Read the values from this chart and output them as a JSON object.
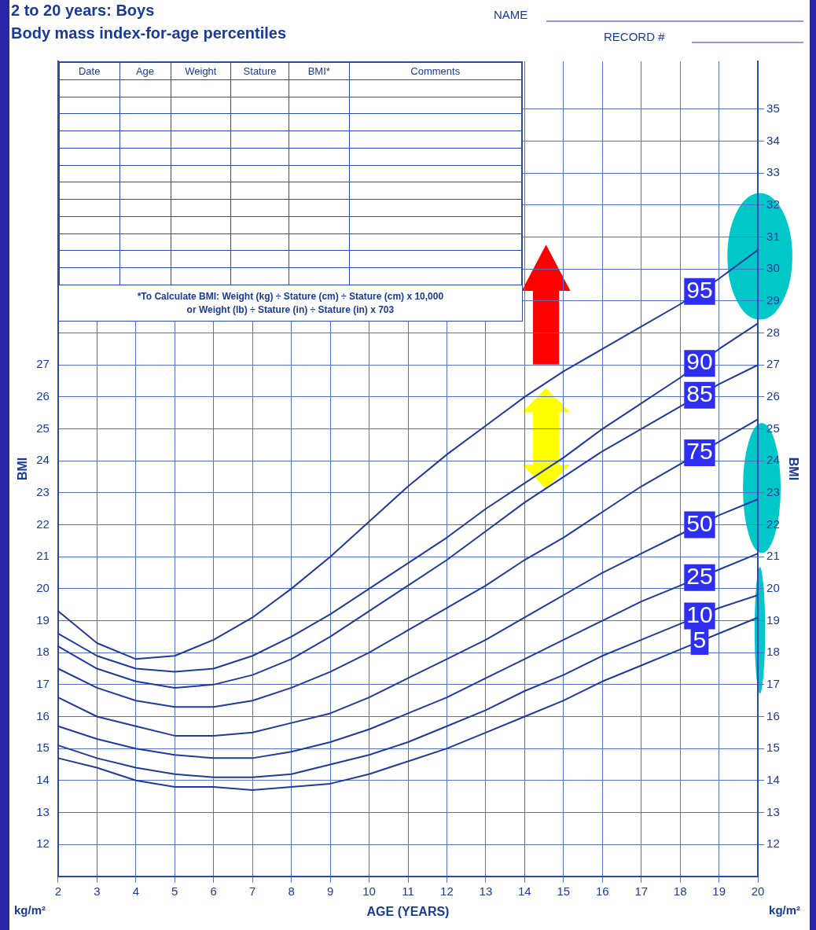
{
  "chart_data": {
    "type": "line",
    "title": "2 to 20 years: Boys",
    "subtitle": "Body mass index-for-age percentiles",
    "xlabel": "AGE (YEARS)",
    "ylabel": "BMI",
    "y2label": "BMI",
    "x": [
      2,
      3,
      4,
      5,
      6,
      7,
      8,
      9,
      10,
      11,
      12,
      13,
      14,
      15,
      16,
      17,
      18,
      19,
      20
    ],
    "series": [
      {
        "name": "95",
        "color": "#1f3a9e",
        "values": [
          19.3,
          18.3,
          17.8,
          17.9,
          18.4,
          19.1,
          20.0,
          21.0,
          22.1,
          23.2,
          24.2,
          25.1,
          26.0,
          26.8,
          27.5,
          28.2,
          28.9,
          29.7,
          30.6
        ]
      },
      {
        "name": "90",
        "color": "#1f3a9e",
        "values": [
          18.6,
          17.9,
          17.5,
          17.4,
          17.5,
          17.9,
          18.5,
          19.2,
          20.0,
          20.8,
          21.6,
          22.5,
          23.3,
          24.1,
          25.0,
          25.8,
          26.6,
          27.5,
          28.3
        ]
      },
      {
        "name": "85",
        "color": "#1f3a9e",
        "values": [
          18.2,
          17.5,
          17.1,
          16.9,
          17.0,
          17.3,
          17.8,
          18.5,
          19.3,
          20.1,
          20.9,
          21.8,
          22.7,
          23.5,
          24.3,
          25.0,
          25.7,
          26.4,
          27.0
        ]
      },
      {
        "name": "75",
        "color": "#1f3a9e",
        "values": [
          17.5,
          16.9,
          16.5,
          16.3,
          16.3,
          16.5,
          16.9,
          17.4,
          18.0,
          18.7,
          19.4,
          20.1,
          20.9,
          21.6,
          22.4,
          23.2,
          23.9,
          24.6,
          25.3
        ]
      },
      {
        "name": "50",
        "color": "#1f3a9e",
        "values": [
          16.6,
          16.0,
          15.7,
          15.4,
          15.4,
          15.5,
          15.8,
          16.1,
          16.6,
          17.2,
          17.8,
          18.4,
          19.1,
          19.8,
          20.5,
          21.1,
          21.7,
          22.3,
          22.8
        ]
      },
      {
        "name": "25",
        "color": "#1f3a9e",
        "values": [
          15.7,
          15.3,
          15.0,
          14.8,
          14.7,
          14.7,
          14.9,
          15.2,
          15.6,
          16.1,
          16.6,
          17.2,
          17.8,
          18.4,
          19.0,
          19.6,
          20.1,
          20.6,
          21.1
        ]
      },
      {
        "name": "10",
        "color": "#1f3a9e",
        "values": [
          15.1,
          14.7,
          14.4,
          14.2,
          14.1,
          14.1,
          14.2,
          14.5,
          14.8,
          15.2,
          15.7,
          16.2,
          16.8,
          17.3,
          17.9,
          18.4,
          18.9,
          19.4,
          19.8
        ]
      },
      {
        "name": "5",
        "color": "#1f3a9e",
        "values": [
          14.7,
          14.4,
          14.0,
          13.8,
          13.8,
          13.7,
          13.8,
          13.9,
          14.2,
          14.6,
          15.0,
          15.5,
          16.0,
          16.5,
          17.1,
          17.6,
          18.1,
          18.6,
          19.1
        ]
      }
    ],
    "xlim": [
      2,
      20
    ],
    "xticks": [
      2,
      3,
      4,
      5,
      6,
      7,
      8,
      9,
      10,
      11,
      12,
      13,
      14,
      15,
      16,
      17,
      18,
      19,
      20
    ],
    "ylim": [
      11,
      36.5
    ],
    "yticks": [
      12,
      13,
      14,
      15,
      16,
      17,
      18,
      19,
      20,
      21,
      22,
      23,
      24,
      25,
      26,
      27
    ],
    "y2lim": [
      11,
      36.5
    ],
    "y2ticks": [
      12,
      13,
      14,
      15,
      16,
      17,
      18,
      19,
      20,
      21,
      22,
      23,
      24,
      25,
      26,
      27,
      28,
      29,
      30,
      31,
      32,
      33,
      34,
      35
    ],
    "grid": true,
    "legend": false,
    "marker": "none",
    "line_style": "solid",
    "annotations": [
      "NAME",
      "RECORD #",
      "Date",
      "Age",
      "Weight",
      "Stature",
      "BMI*",
      "Comments",
      "*To Calculate BMI: Weight (kg) ÷ Stature (cm) ÷ Stature (cm) x 10,000",
      "or Weight (lb) ÷ Stature (in) ÷ Stature (in) x 703",
      "kg/m²",
      "kg/m²"
    ]
  }
}
